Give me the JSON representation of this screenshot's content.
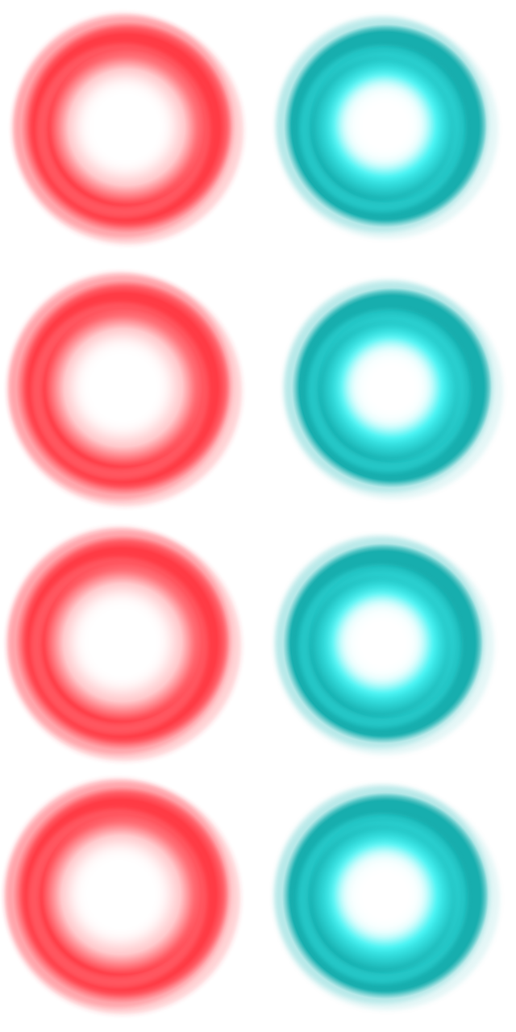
{
  "colors": {
    "background": "#ffffff",
    "red_ring": "#ff3b45",
    "red_glow": "#ff8a90",
    "red_core": "#ffffff",
    "teal_ring": "#17aeae",
    "teal_glow": "#3ff3f3",
    "teal_core": "#ffffff"
  },
  "grid": {
    "rows": 4,
    "columns": 2
  },
  "orbs": [
    {
      "name": "red-orb-1",
      "tone": "red"
    },
    {
      "name": "teal-orb-1",
      "tone": "teal"
    },
    {
      "name": "red-orb-2",
      "tone": "red"
    },
    {
      "name": "teal-orb-2",
      "tone": "teal"
    },
    {
      "name": "red-orb-3",
      "tone": "red"
    },
    {
      "name": "teal-orb-3",
      "tone": "teal"
    },
    {
      "name": "red-orb-4",
      "tone": "red"
    },
    {
      "name": "teal-orb-4",
      "tone": "teal"
    }
  ]
}
